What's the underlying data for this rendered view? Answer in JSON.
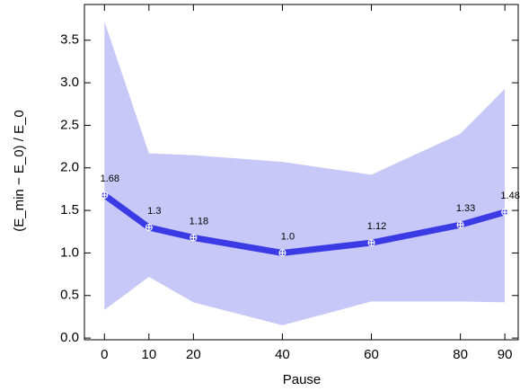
{
  "chart_data": {
    "type": "line",
    "xlabel": "Pause",
    "ylabel": "(E_min − E_0) / E_0",
    "x": [
      0,
      10,
      20,
      40,
      60,
      80,
      90
    ],
    "values": [
      1.68,
      1.3,
      1.18,
      1.0,
      1.12,
      1.33,
      1.48
    ],
    "value_labels": [
      "1.68",
      "1.3",
      "1.18",
      "1.0",
      "1.12",
      "1.33",
      "1.48"
    ],
    "upper": [
      3.72,
      2.17,
      2.15,
      2.07,
      1.92,
      2.4,
      2.93
    ],
    "lower": [
      0.33,
      0.72,
      0.42,
      0.15,
      0.43,
      0.43,
      0.42
    ],
    "color": "#3b3be6",
    "band_color": "#c8c8f8",
    "xlim": [
      -4.5,
      93
    ],
    "ylim": [
      -0.02,
      3.92
    ],
    "xticks": [
      0,
      10,
      20,
      40,
      60,
      80,
      90
    ],
    "yticks": [
      {
        "value": 0,
        "label": "0.0"
      },
      0.5,
      {
        "value": 1,
        "label": "1.0"
      },
      1.5,
      {
        "value": 2,
        "label": "2.0"
      },
      2.5,
      {
        "value": 3,
        "label": "3.0"
      },
      3.5
    ]
  }
}
